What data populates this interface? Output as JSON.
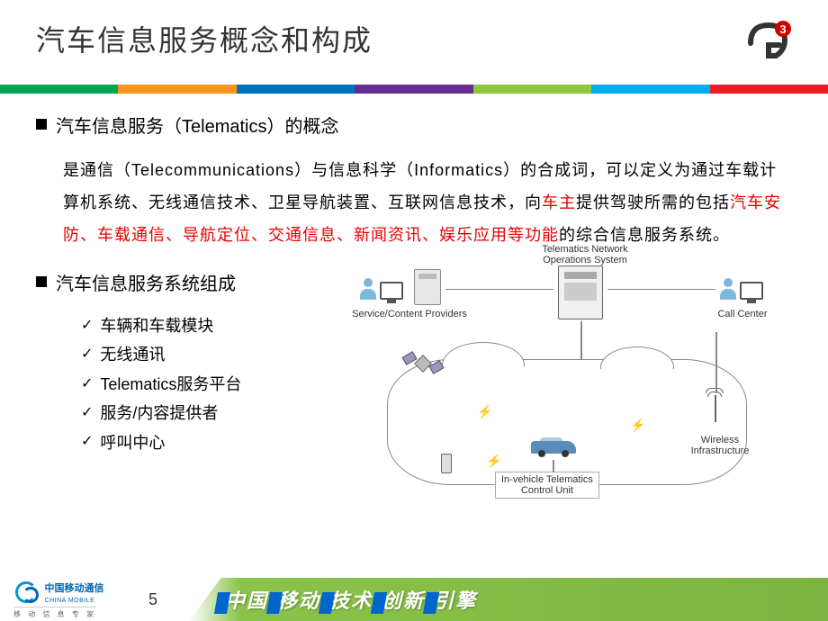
{
  "title": "汽车信息服务概念和构成",
  "logo": {
    "letter": "G",
    "superscript": "3",
    "bg_color": "#d40000",
    "text_color": "#ffffff"
  },
  "color_bar": [
    "#00a651",
    "#f7941d",
    "#0072bc",
    "#662d91",
    "#8dc63f",
    "#00aeef",
    "#ed1c24"
  ],
  "section1": {
    "heading": "汽车信息服务（Telematics）的概念",
    "paragraph_parts": [
      {
        "text": "是通信（Telecommunications）与信息科学（Informatics）的合成词，可以定义为通过车载计算机系统、无线通信技术、卫星导航装置、互联网信息技术，向",
        "red": false
      },
      {
        "text": "车主",
        "red": true
      },
      {
        "text": "提供驾驶所需的包括",
        "red": false
      },
      {
        "text": "汽车安防、车载通信、导航定位、交通信息、新闻资讯、娱乐应用等功能",
        "red": true
      },
      {
        "text": "的综合信息服务系统。",
        "red": false
      }
    ]
  },
  "section2": {
    "heading": "汽车信息服务系统组成",
    "items": [
      "车辆和车载模块",
      "无线通讯",
      "Telematics服务平台",
      "服务/内容提供者",
      "呼叫中心"
    ]
  },
  "diagram": {
    "labels": {
      "providers": "Service/Content Providers",
      "network": "Telematics Network\nOperations System",
      "callcenter": "Call Center",
      "wireless": "Wireless\nInfrastructure",
      "vehicle": "In-vehicle Telematics\nControl Unit"
    }
  },
  "footer": {
    "company_cn": "中国移动通信",
    "company_en": "CHINA MOBILE",
    "tagline": "移 动 信 息 专 家",
    "page_number": "5",
    "slogan_chars": [
      "中",
      "国",
      "移",
      "动",
      "技",
      "术",
      "创",
      "新",
      "引",
      "擎"
    ],
    "slogan_bg": "#7cb342",
    "slogan_accent": "#0066cc"
  }
}
